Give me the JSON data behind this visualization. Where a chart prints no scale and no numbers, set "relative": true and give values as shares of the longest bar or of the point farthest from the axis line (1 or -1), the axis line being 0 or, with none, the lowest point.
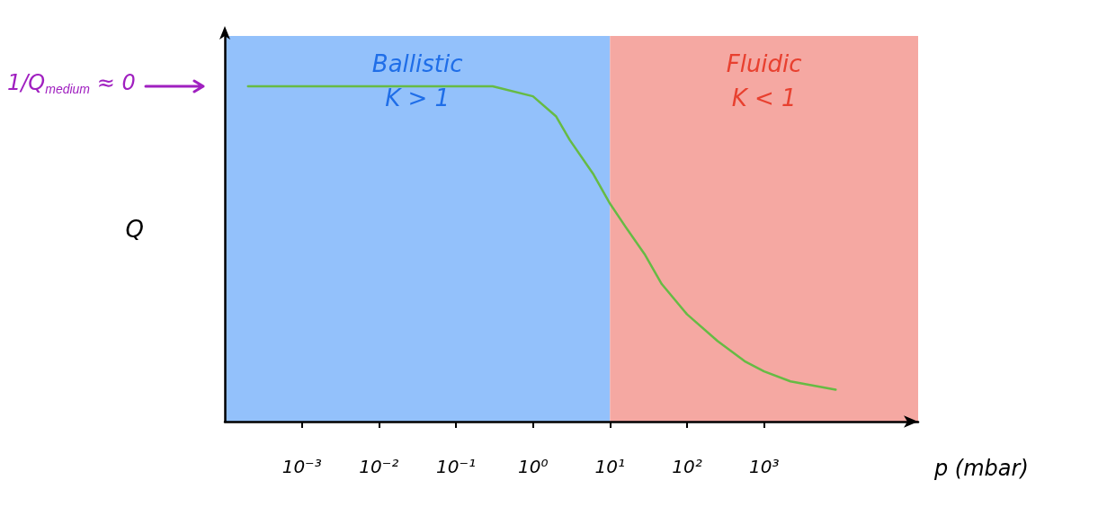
{
  "chart_data": {
    "type": "line",
    "relative": true,
    "log": "x",
    "xlabel": "p (mbar)",
    "ylabel": "Q",
    "xlim": [
      0.0001,
      100000
    ],
    "xticks": [
      {
        "value": 0.001,
        "label": "10⁻³"
      },
      {
        "value": 0.01,
        "label": "10⁻²"
      },
      {
        "value": 0.1,
        "label": "10⁻¹"
      },
      {
        "value": 1,
        "label": "10⁰"
      },
      {
        "value": 10,
        "label": "10¹"
      },
      {
        "value": 100,
        "label": "10²"
      },
      {
        "value": 1000,
        "label": "10³"
      }
    ],
    "x": [
      0.0002,
      0.001,
      0.01,
      0.1,
      0.3,
      1,
      2,
      3,
      6,
      10,
      16,
      28,
      47,
      100,
      250,
      560,
      1000,
      2200,
      8500
    ],
    "series": [
      {
        "color": "#66bb44",
        "values": [
          1,
          1,
          1,
          1,
          1,
          0.97,
          0.91,
          0.84,
          0.74,
          0.65,
          0.58,
          0.5,
          0.41,
          0.32,
          0.24,
          0.18,
          0.15,
          0.12,
          0.095
        ]
      }
    ],
    "bands": [
      {
        "axis": "x",
        "from": 0.0001,
        "to": 10,
        "label": "Ballistic\nK > 1",
        "color": "#93c1fb"
      },
      {
        "axis": "x",
        "from": 10,
        "to": 100000,
        "label": "Fluidic\nK < 1",
        "color": "#f5a8a2"
      }
    ],
    "annotations": [
      "1/Q$_{medium}$ ≈ 0"
    ],
    "grid": false,
    "marker": "none",
    "line_style": "solid"
  }
}
